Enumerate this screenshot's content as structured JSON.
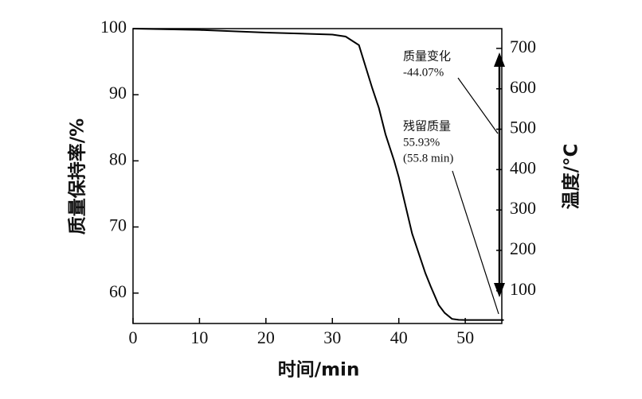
{
  "chart_data": {
    "type": "line",
    "x_label": "时间/min",
    "y_label": "质量保持率/%",
    "y2_label": "温度/°C",
    "x": [
      0,
      10,
      20,
      30,
      32,
      34,
      36,
      37,
      38,
      39.3,
      40,
      42,
      44,
      44.8,
      46,
      46.9,
      48,
      49,
      50,
      55.8
    ],
    "series": [
      {
        "color": "#000000",
        "values": [
          100,
          99.8,
          99.4,
          99.1,
          98.8,
          97.5,
          91,
          88,
          84,
          80,
          77.5,
          69,
          63,
          61,
          58.2,
          57,
          56.1,
          55.95,
          55.93,
          55.93
        ]
      }
    ],
    "xlim": [
      0,
      55.5
    ],
    "xticks": [
      0,
      10,
      20,
      30,
      40,
      50
    ],
    "ylim": [
      55.4,
      100
    ],
    "yticks": [
      60,
      70,
      80,
      90,
      100
    ],
    "y2lim": [
      19,
      749
    ],
    "y2ticks": [
      100,
      200,
      300,
      400,
      500,
      600,
      700
    ],
    "annotations": [
      {
        "lines": [
          "质量变化",
          "-44.07%"
        ]
      },
      {
        "lines": [
          "残留质量",
          "55.93%",
          "(55.8 min)"
        ]
      }
    ]
  }
}
